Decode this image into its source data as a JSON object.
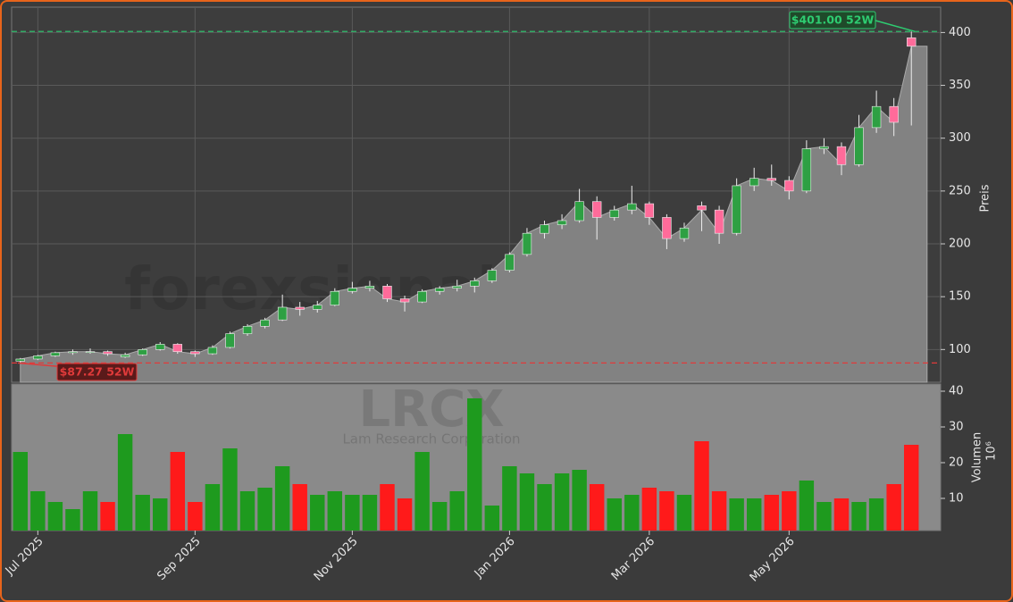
{
  "chart_data": [
    {
      "type": "candlestick",
      "ylabel": "Preis",
      "watermark": "forexsignale.trade",
      "symbol": "LRCX",
      "company": "Lam Research Corporation",
      "categories": [
        null,
        "Jul 2025",
        null,
        null,
        null,
        null,
        null,
        null,
        null,
        null,
        "Sep 2025",
        null,
        null,
        null,
        null,
        null,
        null,
        null,
        null,
        "Nov 2025",
        null,
        null,
        null,
        null,
        null,
        null,
        null,
        null,
        "Jan 2026",
        null,
        null,
        null,
        null,
        null,
        null,
        null,
        "Mar 2026",
        null,
        null,
        null,
        null,
        null,
        null,
        null,
        "May 2026",
        null,
        null,
        null,
        null,
        null,
        null,
        null
      ],
      "open": [
        89,
        91,
        94,
        97,
        98,
        98,
        93,
        95,
        100,
        105,
        98,
        96,
        102,
        115,
        122,
        128,
        140,
        138,
        142,
        155,
        158,
        160,
        148,
        145,
        155,
        158,
        160,
        165,
        175,
        190,
        210,
        218,
        222,
        240,
        225,
        232,
        238,
        225,
        205,
        236,
        232,
        210,
        255,
        262,
        260,
        250,
        290,
        292,
        275,
        310,
        330,
        395
      ],
      "high": [
        92,
        95,
        98,
        100,
        101,
        99,
        97,
        101,
        107,
        106,
        99,
        104,
        117,
        124,
        130,
        152,
        145,
        146,
        158,
        164,
        165,
        162,
        151,
        157,
        160,
        166,
        168,
        177,
        192,
        215,
        222,
        228,
        252,
        245,
        236,
        255,
        240,
        228,
        220,
        240,
        236,
        262,
        272,
        275,
        264,
        298,
        300,
        296,
        322,
        345,
        338,
        401
      ],
      "low": [
        87.27,
        90,
        93,
        95,
        96,
        94,
        92,
        94,
        99,
        96,
        93,
        95,
        101,
        113,
        120,
        127,
        132,
        135,
        141,
        153,
        155,
        145,
        136,
        144,
        152,
        155,
        154,
        163,
        173,
        188,
        205,
        214,
        220,
        204,
        222,
        228,
        218,
        195,
        202,
        212,
        200,
        208,
        250,
        255,
        242,
        248,
        285,
        265,
        273,
        305,
        302,
        312
      ],
      "close": [
        91,
        94,
        97,
        98,
        98,
        96,
        95,
        100,
        105,
        98,
        96,
        102,
        115,
        122,
        128,
        140,
        138,
        142,
        155,
        158,
        160,
        148,
        145,
        155,
        158,
        160,
        165,
        175,
        190,
        210,
        218,
        222,
        240,
        225,
        232,
        238,
        225,
        205,
        215,
        232,
        210,
        255,
        262,
        260,
        250,
        290,
        292,
        275,
        310,
        330,
        315,
        387
      ],
      "up_color": "#2ea043",
      "down_color": "#ff6b9a",
      "area_color": "#828282",
      "ylim": [
        69,
        424
      ],
      "yticks": [
        100,
        150,
        200,
        250,
        300,
        350,
        400
      ],
      "grid": true,
      "annotations": [
        {
          "text": "$401.00 52W",
          "value": 401,
          "color": "#2ecc71"
        },
        {
          "text": "$87.27 52W",
          "value": 87.27,
          "color": "#e03a3a"
        }
      ]
    },
    {
      "type": "bar",
      "ylabel": "Volumen",
      "unit": "10⁶",
      "values": [
        23,
        12,
        9,
        7,
        12,
        9,
        28,
        11,
        10,
        23,
        9,
        14,
        24,
        12,
        13,
        19,
        14,
        11,
        12,
        11,
        11,
        14,
        10,
        23,
        9,
        12,
        38,
        8,
        19,
        17,
        14,
        17,
        18,
        14,
        10,
        11,
        13,
        12,
        11,
        26,
        12,
        10,
        10,
        11,
        12,
        15,
        9,
        10,
        9,
        10,
        14,
        25
      ],
      "up_color": "#1e9a1e",
      "down_color": "#ff1a1a",
      "ylim": [
        1,
        42
      ],
      "yticks": [
        10,
        20,
        30,
        40
      ]
    }
  ]
}
